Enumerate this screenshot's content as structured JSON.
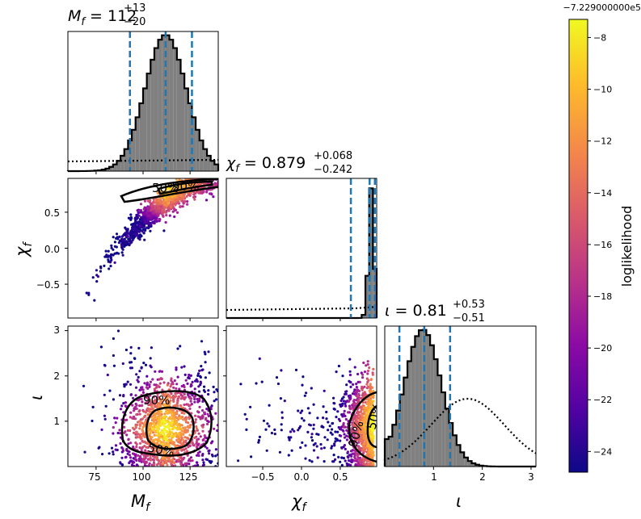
{
  "chart_data": {
    "type": "corner",
    "parameters": [
      {
        "symbol": "Mf",
        "label": "M_f",
        "range": [
          60,
          140
        ],
        "ticks": [
          75,
          100,
          125
        ],
        "title": {
          "prefix": "M_f = ",
          "median": "112",
          "plus": "+13",
          "minus": "−20"
        },
        "quantiles": [
          93,
          112,
          126
        ],
        "peak": 112,
        "sd": 11
      },
      {
        "symbol": "chi",
        "label": "χ_f",
        "range": [
          -0.97,
          0.97
        ],
        "ticks": [
          -0.5,
          0.0,
          0.5
        ],
        "title": {
          "prefix": "χ_f = ",
          "median": "0.879",
          "plus": "+0.068",
          "minus": "−0.242"
        },
        "quantiles": [
          0.637,
          0.879,
          0.947
        ],
        "peak": 0.91,
        "sd": 0.04
      },
      {
        "symbol": "iota",
        "label": "ι",
        "range": [
          0,
          3.1
        ],
        "ticks": [
          1,
          2,
          3
        ],
        "title": {
          "prefix": "ι = ",
          "median": "0.81",
          "plus": "+0.53",
          "minus": "−0.51"
        },
        "quantiles": [
          0.3,
          0.81,
          1.34
        ],
        "peak": 0.78,
        "sd": 0.38
      }
    ],
    "axis_labels": {
      "Mf": "M",
      "Mf_sub": "f",
      "chi": "χ",
      "chi_sub": "f",
      "iota": "ι"
    },
    "tick_labels": {
      "Mf": [
        "75",
        "100",
        "125"
      ],
      "chi_x": [
        "−0.5",
        "0.0",
        "0.5"
      ],
      "chi_y": [
        "−0.5",
        "0.0",
        "0.5"
      ],
      "iota_x": [
        "1",
        "2",
        "3"
      ],
      "iota_y": [
        "1",
        "2",
        "3"
      ]
    },
    "contour_labels": [
      "50%",
      "90%"
    ],
    "colorbar": {
      "label": "loglikelihood",
      "offset_text": "−7.229000000e5",
      "range": [
        -24.8,
        -7.3
      ],
      "ticks": [
        -8,
        -10,
        -12,
        -14,
        -16,
        -18,
        -20,
        -22,
        -24
      ],
      "tick_labels": [
        "−8",
        "−10",
        "−12",
        "−14",
        "−16",
        "−18",
        "−20",
        "−22",
        "−24"
      ],
      "colormap": "plasma",
      "colors": [
        "#0d0887",
        "#5302a3",
        "#8b0aa5",
        "#b83289",
        "#db5c68",
        "#f48849",
        "#febd2a",
        "#f0f921"
      ]
    },
    "hist_color": "#808080",
    "quantile_color": "#1f77b4",
    "prior_style": "dotted"
  }
}
